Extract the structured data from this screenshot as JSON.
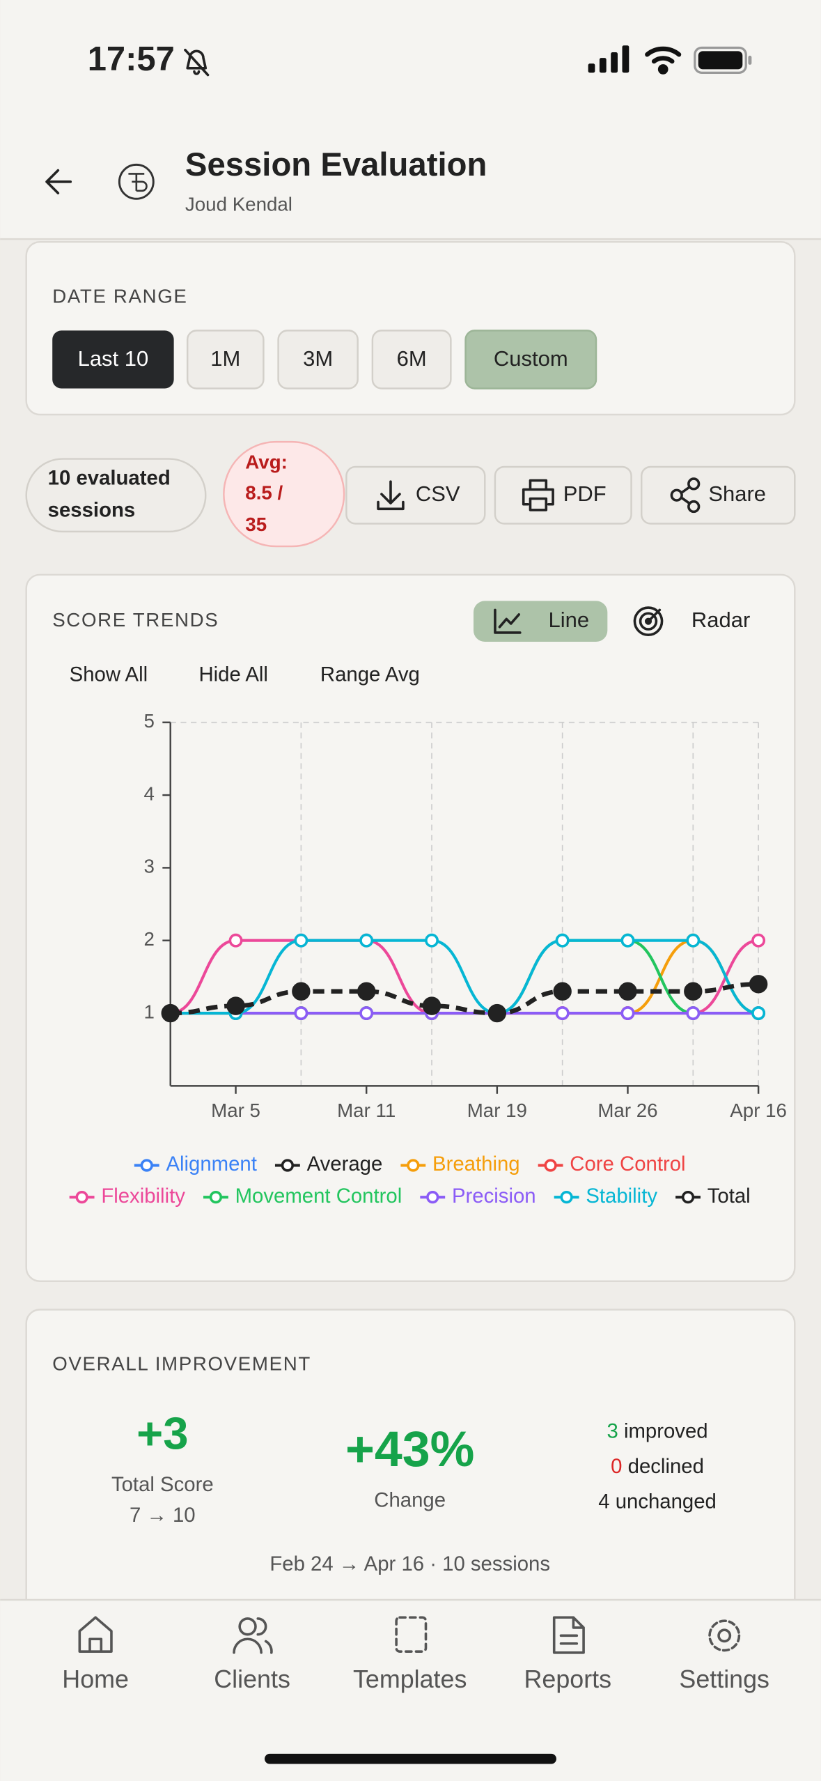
{
  "status_bar": {
    "time": "17:57"
  },
  "header": {
    "title": "Session Evaluation",
    "subtitle": "Joud Kendal"
  },
  "date_range": {
    "label": "DATE RANGE",
    "options": [
      "Last 10",
      "1M",
      "3M",
      "6M",
      "Custom"
    ]
  },
  "summary": {
    "sessions_lines": [
      "10 evaluated",
      "sessions"
    ],
    "avg_lines": [
      "Avg:",
      "8.5 /",
      "35"
    ],
    "actions": [
      "CSV",
      "PDF",
      "Share"
    ]
  },
  "trends": {
    "views": [
      "Line",
      "Radar"
    ],
    "controls": [
      "Show All",
      "Hide All",
      "Range Avg"
    ]
  },
  "chart_data": {
    "type": "line",
    "title": "SCORE TRENDS",
    "categories": [
      null,
      "Mar 5",
      null,
      "Mar 11",
      null,
      "Mar 19",
      null,
      "Mar 26",
      null,
      "Apr 16"
    ],
    "ylim": [
      0,
      5
    ],
    "yticks": [
      1,
      2,
      3,
      4,
      5
    ],
    "grid": true,
    "series": [
      {
        "name": "Alignment",
        "color": "#3b82f6",
        "values": [
          null,
          null,
          null,
          null,
          null,
          null,
          null,
          null,
          null,
          null
        ]
      },
      {
        "name": "Average",
        "color": "#222222",
        "dashed": true,
        "values": [
          1,
          1.1,
          1.3,
          1.3,
          1.1,
          1,
          1.3,
          1.3,
          1.3,
          1.4
        ]
      },
      {
        "name": "Breathing",
        "color": "#f59e0b",
        "values": [
          1,
          1,
          1,
          1,
          1,
          1,
          1,
          1,
          2,
          1
        ]
      },
      {
        "name": "Core Control",
        "color": "#ef4444",
        "values": [
          null,
          null,
          null,
          null,
          null,
          null,
          null,
          null,
          null,
          null
        ]
      },
      {
        "name": "Flexibility",
        "color": "#ec4899",
        "values": [
          1,
          2,
          2,
          2,
          1,
          1,
          1,
          1,
          1,
          2
        ]
      },
      {
        "name": "Movement Control",
        "color": "#22c55e",
        "values": [
          1,
          1,
          1,
          1,
          1,
          1,
          2,
          2,
          1,
          1
        ]
      },
      {
        "name": "Precision",
        "color": "#8b5cf6",
        "values": [
          1,
          1,
          1,
          1,
          1,
          1,
          1,
          1,
          1,
          1
        ]
      },
      {
        "name": "Stability",
        "color": "#06b6d4",
        "values": [
          1,
          1,
          2,
          2,
          2,
          1,
          2,
          2,
          2,
          1
        ]
      },
      {
        "name": "Total",
        "color": "#222222",
        "values": [
          null,
          null,
          null,
          null,
          null,
          null,
          null,
          null,
          null,
          null
        ]
      }
    ]
  },
  "improvement": {
    "label": "OVERALL IMPROVEMENT",
    "total": "+3",
    "total_label": "Total Score",
    "total_range": "7 → 10",
    "change": "+43%",
    "change_label": "Change",
    "improved": "3",
    "improved_label": "improved",
    "declined": "0",
    "declined_label": "declined",
    "unchanged": "4 unchanged",
    "footer": "Feb 24 → Apr 16 · 10 sessions"
  },
  "nav": [
    "Home",
    "Clients",
    "Templates",
    "Reports",
    "Settings"
  ]
}
